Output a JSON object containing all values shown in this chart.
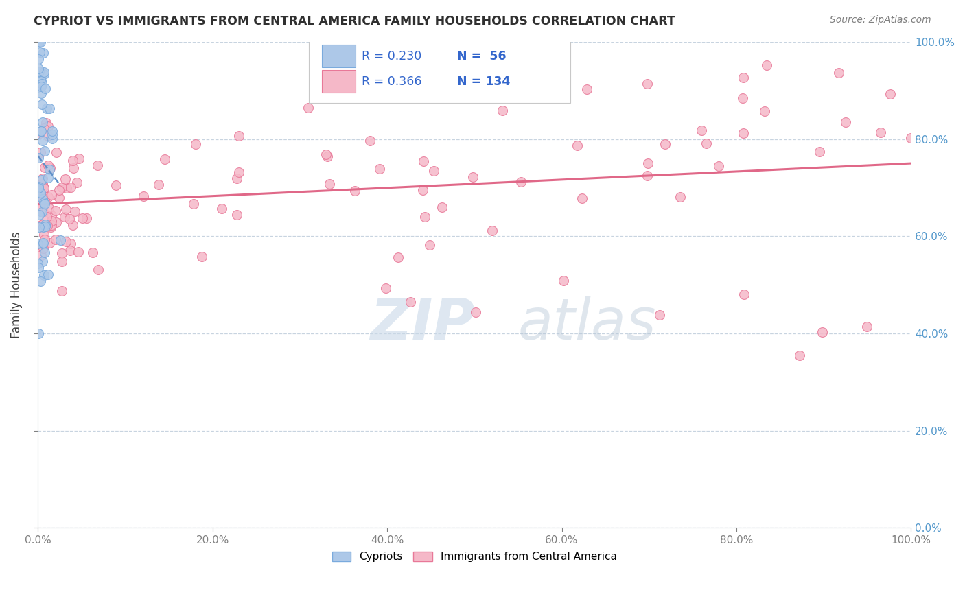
{
  "title": "CYPRIOT VS IMMIGRANTS FROM CENTRAL AMERICA FAMILY HOUSEHOLDS CORRELATION CHART",
  "source": "Source: ZipAtlas.com",
  "ylabel": "Family Households",
  "blue_label": "Cypriots",
  "pink_label": "Immigrants from Central America",
  "blue_R": 0.23,
  "blue_N": 56,
  "pink_R": 0.366,
  "pink_N": 134,
  "blue_dot_color": "#adc8e8",
  "pink_dot_color": "#f5b8c8",
  "blue_edge_color": "#7aaadd",
  "pink_edge_color": "#e87898",
  "blue_line_color": "#6090c8",
  "pink_line_color": "#e06888",
  "text_color": "#3366cc",
  "label_color": "#202020",
  "title_color": "#303030",
  "source_color": "#808080",
  "right_tick_color": "#5599cc",
  "grid_color": "#c8d4e0",
  "ytick_labels": [
    "0.0%",
    "20.0%",
    "40.0%",
    "60.0%",
    "80.0%",
    "100.0%"
  ],
  "ytick_values": [
    0.0,
    0.2,
    0.4,
    0.6,
    0.8,
    1.0
  ],
  "xtick_labels": [
    "0.0%",
    "20.0%",
    "40.0%",
    "60.0%",
    "80.0%",
    "100.0%"
  ],
  "xtick_values": [
    0.0,
    0.2,
    0.4,
    0.6,
    0.8,
    1.0
  ],
  "watermark_zip_color": "#c8d8e8",
  "watermark_atlas_color": "#b8c8d8"
}
